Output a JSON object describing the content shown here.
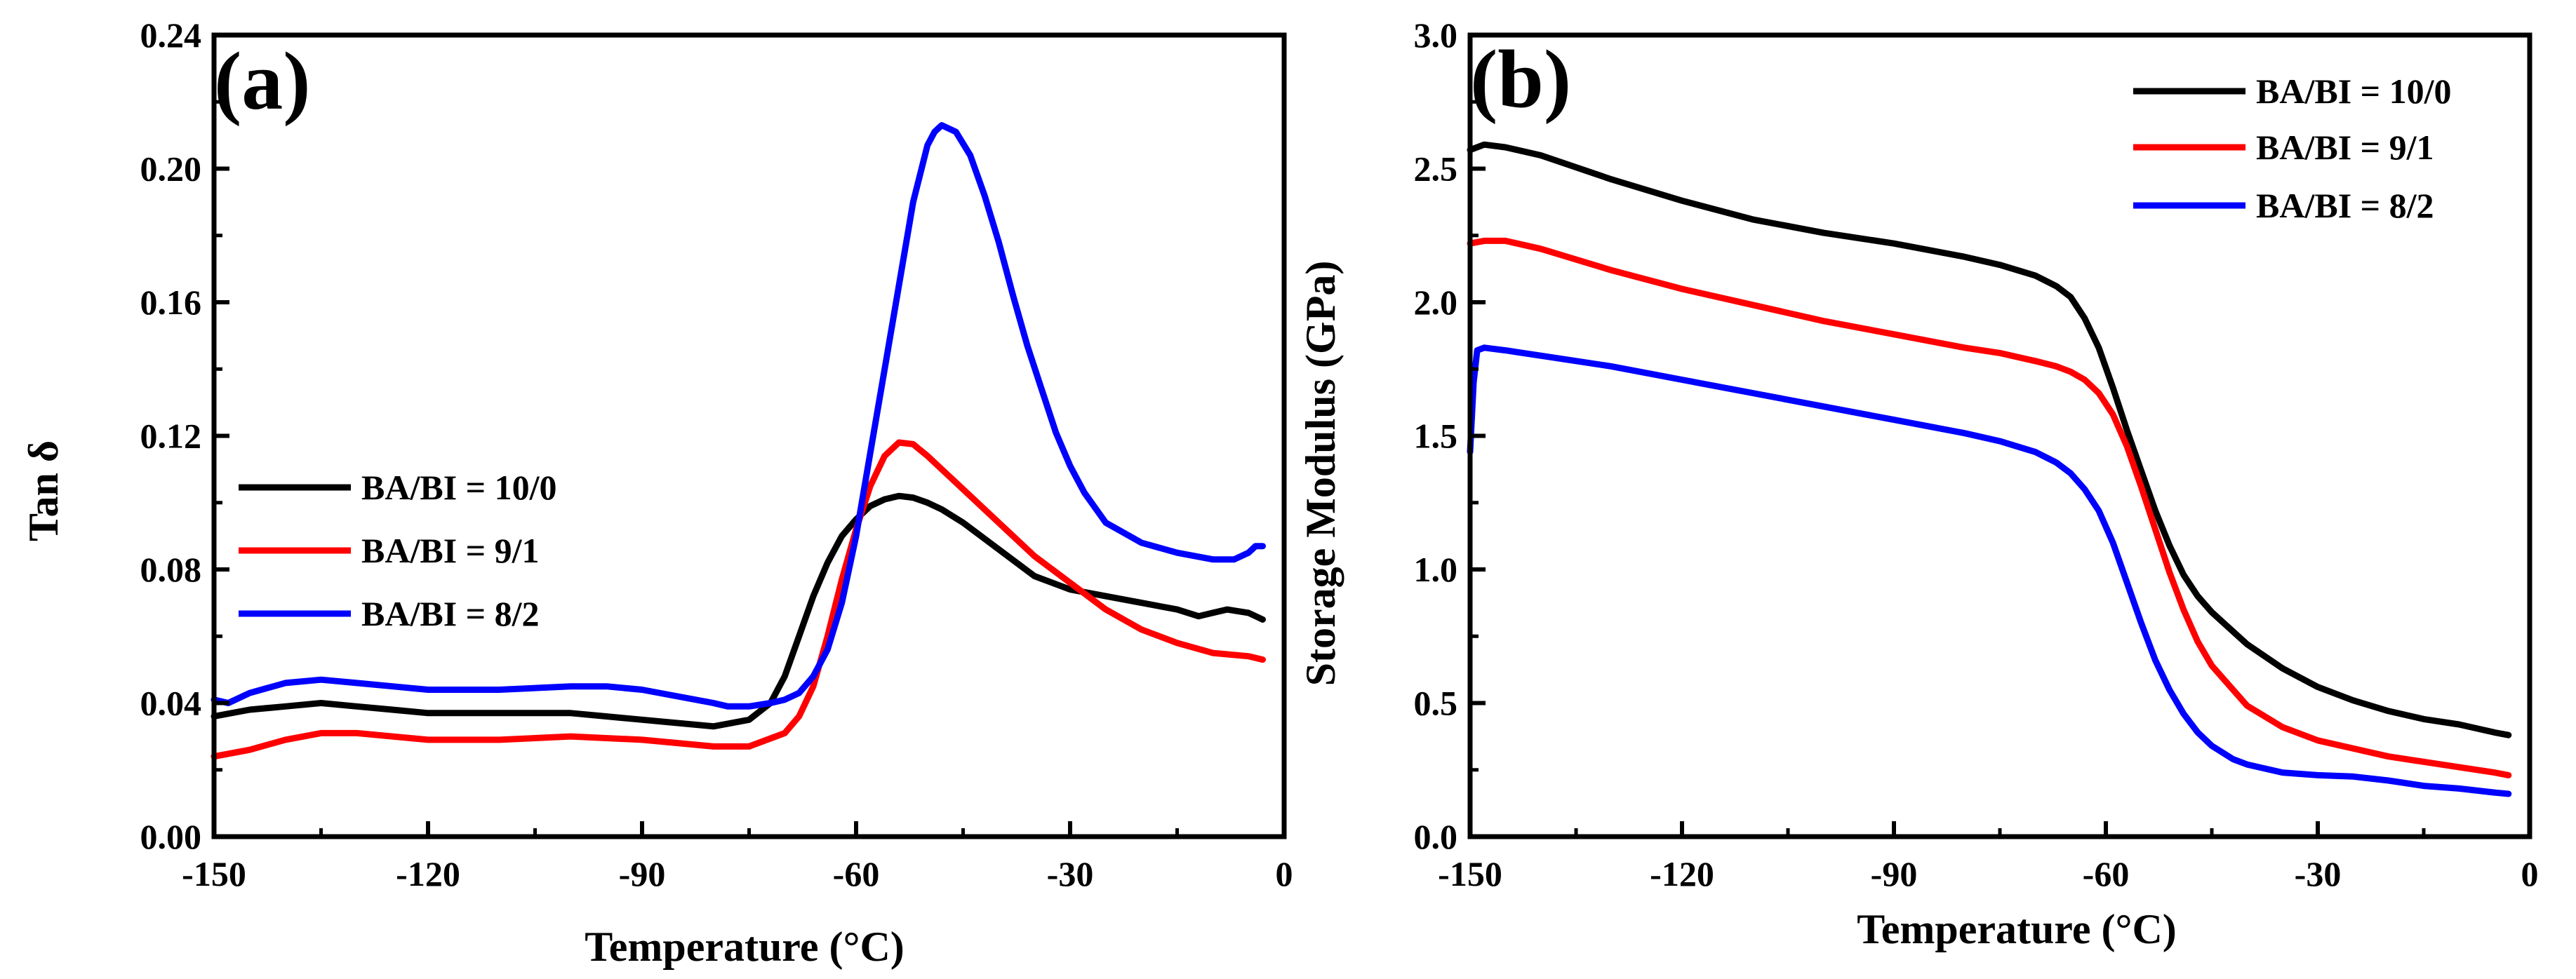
{
  "chart_data": [
    {
      "type": "line",
      "panel_label": "(a)",
      "xlabel": "Temperature (°C)",
      "ylabel": "Tan δ",
      "xlim": [
        -150,
        0
      ],
      "ylim": [
        0,
        0.24
      ],
      "xticks": [
        -150,
        -120,
        -90,
        -60,
        -30,
        0
      ],
      "xtick_labels": [
        "-150",
        "-120",
        "-90",
        "-60",
        "-30",
        "0"
      ],
      "yticks": [
        0,
        0.04,
        0.08,
        0.12,
        0.16,
        0.2,
        0.24
      ],
      "ytick_labels": [
        "0.00",
        "0.04",
        "0.08",
        "0.12",
        "0.16",
        "0.20",
        "0.24"
      ],
      "legend_position": "middle-left",
      "series": [
        {
          "name": "BA/BI = 10/0",
          "color": "#000000",
          "x": [
            -150,
            -145,
            -140,
            -135,
            -130,
            -125,
            -120,
            -110,
            -100,
            -90,
            -80,
            -75,
            -72,
            -70,
            -68,
            -66,
            -64,
            -62,
            -60,
            -58,
            -56,
            -54,
            -52,
            -50,
            -48,
            -45,
            -40,
            -35,
            -30,
            -25,
            -20,
            -15,
            -12,
            -10,
            -8,
            -5,
            -3
          ],
          "y": [
            0.036,
            0.038,
            0.039,
            0.04,
            0.039,
            0.038,
            0.037,
            0.037,
            0.037,
            0.035,
            0.033,
            0.035,
            0.04,
            0.048,
            0.06,
            0.072,
            0.082,
            0.09,
            0.095,
            0.099,
            0.101,
            0.102,
            0.1015,
            0.1,
            0.098,
            0.094,
            0.086,
            0.078,
            0.074,
            0.072,
            0.07,
            0.068,
            0.066,
            0.067,
            0.068,
            0.067,
            0.065
          ]
        },
        {
          "name": "BA/BI = 9/1",
          "color": "#ff0000",
          "x": [
            -150,
            -145,
            -140,
            -135,
            -130,
            -125,
            -120,
            -110,
            -100,
            -90,
            -80,
            -75,
            -70,
            -68,
            -66,
            -64,
            -62,
            -60,
            -58,
            -56,
            -54,
            -52,
            -50,
            -48,
            -45,
            -40,
            -35,
            -30,
            -25,
            -20,
            -15,
            -10,
            -5,
            -3
          ],
          "y": [
            0.024,
            0.026,
            0.029,
            0.031,
            0.031,
            0.03,
            0.029,
            0.029,
            0.03,
            0.029,
            0.027,
            0.027,
            0.031,
            0.036,
            0.045,
            0.06,
            0.077,
            0.092,
            0.105,
            0.114,
            0.118,
            0.1175,
            0.114,
            0.11,
            0.104,
            0.094,
            0.084,
            0.076,
            0.068,
            0.062,
            0.058,
            0.055,
            0.054,
            0.053
          ]
        },
        {
          "name": "BA/BI = 8/2",
          "color": "#0000ff",
          "x": [
            -150,
            -148,
            -145,
            -140,
            -135,
            -130,
            -125,
            -120,
            -110,
            -100,
            -95,
            -90,
            -85,
            -80,
            -78,
            -75,
            -72,
            -70,
            -68,
            -66,
            -64,
            -62,
            -60,
            -58,
            -56,
            -54,
            -52,
            -50,
            -49,
            -48,
            -46,
            -44,
            -42,
            -40,
            -38,
            -36,
            -34,
            -32,
            -30,
            -28,
            -25,
            -20,
            -15,
            -10,
            -7,
            -5,
            -4,
            -3
          ],
          "y": [
            0.041,
            0.04,
            0.043,
            0.046,
            0.047,
            0.046,
            0.045,
            0.044,
            0.044,
            0.045,
            0.045,
            0.044,
            0.042,
            0.04,
            0.039,
            0.039,
            0.04,
            0.041,
            0.043,
            0.048,
            0.056,
            0.07,
            0.09,
            0.115,
            0.14,
            0.165,
            0.19,
            0.207,
            0.211,
            0.213,
            0.211,
            0.204,
            0.192,
            0.178,
            0.162,
            0.147,
            0.134,
            0.121,
            0.111,
            0.103,
            0.094,
            0.088,
            0.085,
            0.083,
            0.083,
            0.085,
            0.087,
            0.087
          ]
        }
      ]
    },
    {
      "type": "line",
      "panel_label": "(b)",
      "xlabel": "Temperature (°C)",
      "ylabel": "Storage Modulus (GPa)",
      "xlim": [
        -150,
        0
      ],
      "ylim": [
        0,
        3.0
      ],
      "xticks": [
        -150,
        -120,
        -90,
        -60,
        -30,
        0
      ],
      "xtick_labels": [
        "-150",
        "-120",
        "-90",
        "-60",
        "-30",
        "0"
      ],
      "yticks": [
        0,
        0.5,
        1.0,
        1.5,
        2.0,
        2.5,
        3.0
      ],
      "ytick_labels": [
        "0.0",
        "0.5",
        "1.0",
        "1.5",
        "2.0",
        "2.5",
        "3.0"
      ],
      "legend_position": "top-right",
      "series": [
        {
          "name": "BA/BI = 10/0",
          "color": "#000000",
          "x": [
            -150,
            -148,
            -145,
            -140,
            -130,
            -120,
            -110,
            -100,
            -90,
            -80,
            -75,
            -70,
            -67,
            -65,
            -63,
            -61,
            -59,
            -57,
            -55,
            -53,
            -51,
            -49,
            -47,
            -45,
            -40,
            -35,
            -30,
            -25,
            -20,
            -15,
            -10,
            -5,
            -3
          ],
          "y": [
            2.57,
            2.59,
            2.58,
            2.55,
            2.46,
            2.38,
            2.31,
            2.26,
            2.22,
            2.17,
            2.14,
            2.1,
            2.06,
            2.02,
            1.94,
            1.83,
            1.68,
            1.52,
            1.37,
            1.22,
            1.09,
            0.98,
            0.9,
            0.84,
            0.72,
            0.63,
            0.56,
            0.51,
            0.47,
            0.44,
            0.42,
            0.39,
            0.38
          ]
        },
        {
          "name": "BA/BI = 9/1",
          "color": "#ff0000",
          "x": [
            -150,
            -148,
            -145,
            -140,
            -130,
            -120,
            -110,
            -100,
            -90,
            -80,
            -75,
            -70,
            -67,
            -65,
            -63,
            -61,
            -59,
            -57,
            -55,
            -53,
            -51,
            -49,
            -47,
            -45,
            -40,
            -35,
            -30,
            -25,
            -20,
            -15,
            -10,
            -5,
            -3
          ],
          "y": [
            2.22,
            2.23,
            2.23,
            2.2,
            2.12,
            2.05,
            1.99,
            1.93,
            1.88,
            1.83,
            1.81,
            1.78,
            1.76,
            1.74,
            1.71,
            1.66,
            1.58,
            1.46,
            1.31,
            1.15,
            0.99,
            0.85,
            0.73,
            0.64,
            0.49,
            0.41,
            0.36,
            0.33,
            0.3,
            0.28,
            0.26,
            0.24,
            0.23
          ]
        },
        {
          "name": "BA/BI = 8/2",
          "color": "#0000ff",
          "x": [
            -150,
            -149.5,
            -149,
            -148,
            -145,
            -140,
            -130,
            -120,
            -110,
            -100,
            -90,
            -80,
            -75,
            -70,
            -67,
            -65,
            -63,
            -61,
            -59,
            -57,
            -55,
            -53,
            -51,
            -49,
            -47,
            -45,
            -42,
            -40,
            -35,
            -30,
            -25,
            -20,
            -15,
            -10,
            -5,
            -3
          ],
          "y": [
            1.44,
            1.7,
            1.82,
            1.83,
            1.82,
            1.8,
            1.76,
            1.71,
            1.66,
            1.61,
            1.56,
            1.51,
            1.48,
            1.44,
            1.4,
            1.36,
            1.3,
            1.22,
            1.1,
            0.95,
            0.8,
            0.66,
            0.55,
            0.46,
            0.39,
            0.34,
            0.29,
            0.27,
            0.24,
            0.23,
            0.225,
            0.21,
            0.19,
            0.18,
            0.165,
            0.16
          ]
        }
      ]
    }
  ]
}
